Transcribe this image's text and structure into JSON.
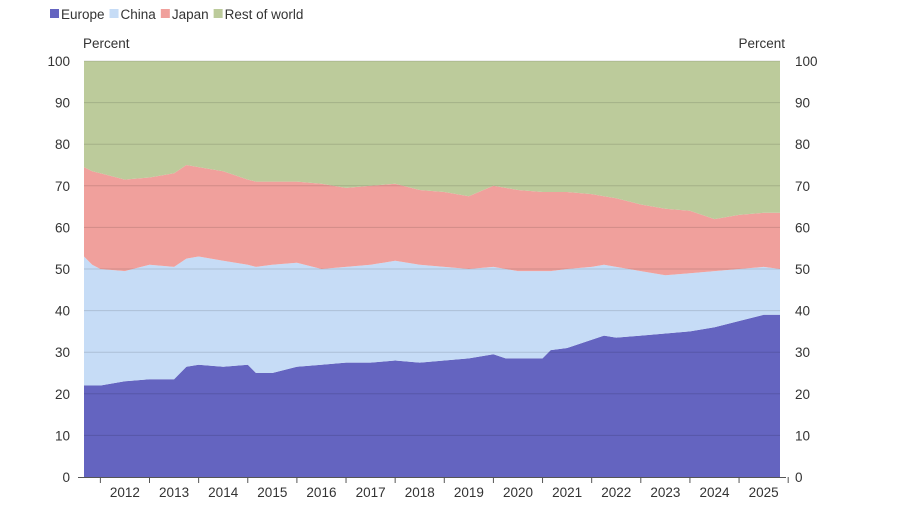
{
  "chart_data": {
    "type": "area",
    "stacked": true,
    "title": "",
    "ylabel_left": "Percent",
    "ylabel_right": "Percent",
    "ylim": [
      0,
      100
    ],
    "yticks": [
      0,
      10,
      20,
      30,
      40,
      50,
      60,
      70,
      80,
      90,
      100
    ],
    "xticks": [
      "2012",
      "2013",
      "2014",
      "2015",
      "2016",
      "2017",
      "2018",
      "2019",
      "2020",
      "2021",
      "2022",
      "2023",
      "2024",
      "2025"
    ],
    "grid": true,
    "legend_position": "top-left",
    "x": [
      "2011-09",
      "2011-11",
      "2012-01",
      "2012-07",
      "2013-01",
      "2013-07",
      "2013-10",
      "2014-01",
      "2014-07",
      "2015-01",
      "2015-03",
      "2015-07",
      "2016-01",
      "2016-07",
      "2017-01",
      "2017-07",
      "2018-01",
      "2018-07",
      "2019-01",
      "2019-07",
      "2020-01",
      "2020-04",
      "2020-07",
      "2021-01",
      "2021-03",
      "2021-07",
      "2022-01",
      "2022-04",
      "2022-07",
      "2023-01",
      "2023-07",
      "2024-01",
      "2024-07",
      "2025-01",
      "2025-07",
      "2025-11"
    ],
    "series": [
      {
        "name": "Europe",
        "color": "#6464c0",
        "values": [
          22,
          22,
          22,
          23,
          23.5,
          23.5,
          26.5,
          27,
          26.5,
          27,
          25,
          25,
          26.5,
          27,
          27.5,
          27.5,
          28,
          27.5,
          28,
          28.5,
          29.5,
          28.5,
          28.5,
          28.5,
          30.5,
          31,
          33,
          34,
          33.5,
          34,
          34.5,
          35,
          36,
          37.5,
          39,
          39
        ]
      },
      {
        "name": "China",
        "color": "#c6dcf6",
        "values": [
          31,
          29,
          28,
          26.5,
          27.5,
          27,
          26,
          26,
          25.5,
          24,
          25.5,
          26,
          25,
          23,
          23,
          23.5,
          24,
          23.5,
          22.5,
          21.5,
          21,
          21.5,
          21,
          21,
          19,
          19,
          17.5,
          17,
          17,
          15.5,
          14,
          14,
          13.5,
          12.5,
          11.5,
          11
        ]
      },
      {
        "name": "Japan",
        "color": "#f0a09c",
        "values": [
          21.5,
          22.5,
          23,
          22,
          21,
          22.5,
          22.5,
          21.5,
          21.5,
          20.5,
          20.5,
          20,
          19.5,
          20.5,
          19,
          19,
          18.5,
          18,
          18,
          17.5,
          19.5,
          19.5,
          19.5,
          19,
          19,
          18.5,
          17.5,
          16.5,
          16.5,
          16,
          16,
          15,
          12.5,
          13,
          13,
          13.5
        ]
      },
      {
        "name": "Rest of world",
        "color": "#bccb9b",
        "values": [
          25.5,
          26.5,
          27,
          28.5,
          28,
          27,
          25,
          25.5,
          26.5,
          28.5,
          29,
          29,
          29,
          29.5,
          30.5,
          30,
          29.5,
          31,
          31.5,
          32.5,
          30,
          30.5,
          31,
          31.5,
          31.5,
          31.5,
          32,
          32.5,
          33,
          34.5,
          35.5,
          36,
          38,
          37,
          36.5,
          36.5
        ]
      }
    ]
  }
}
